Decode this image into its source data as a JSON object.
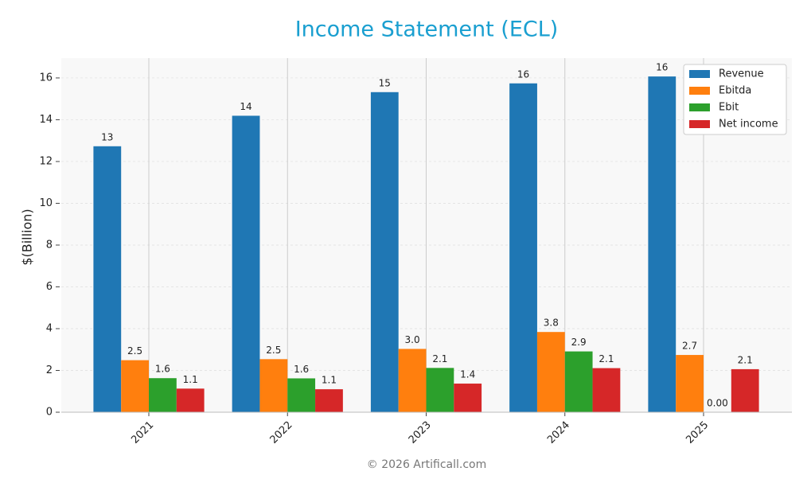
{
  "chart_data": {
    "type": "bar",
    "title": "Income Statement (ECL)",
    "ylabel": "$(Billion)",
    "footer": "© 2026 Artificall.com",
    "categories": [
      "2021",
      "2022",
      "2023",
      "2024",
      "2025"
    ],
    "series": [
      {
        "name": "Revenue",
        "color": "#1f77b4",
        "values": [
          12.73,
          14.19,
          15.32,
          15.74,
          16.07
        ],
        "value_labels": [
          "13",
          "14",
          "15",
          "16",
          "16"
        ]
      },
      {
        "name": "Ebitda",
        "color": "#ff7f0e",
        "values": [
          2.49,
          2.54,
          3.03,
          3.84,
          2.74
        ],
        "value_labels": [
          "2.5",
          "2.5",
          "3.0",
          "3.8",
          "2.7"
        ]
      },
      {
        "name": "Ebit",
        "color": "#2ca02c",
        "values": [
          1.63,
          1.62,
          2.12,
          2.91,
          0.0
        ],
        "value_labels": [
          "1.6",
          "1.6",
          "2.1",
          "2.9",
          "0.00"
        ]
      },
      {
        "name": "Net income",
        "color": "#d62728",
        "values": [
          1.13,
          1.1,
          1.37,
          2.11,
          2.06
        ],
        "value_labels": [
          "1.1",
          "1.1",
          "1.4",
          "2.1",
          "2.1"
        ]
      }
    ],
    "ylim": [
      0,
      16.95
    ],
    "yticks": [
      0,
      2,
      4,
      6,
      8,
      10,
      12,
      14,
      16
    ],
    "grid": true,
    "legend": "upper right"
  }
}
